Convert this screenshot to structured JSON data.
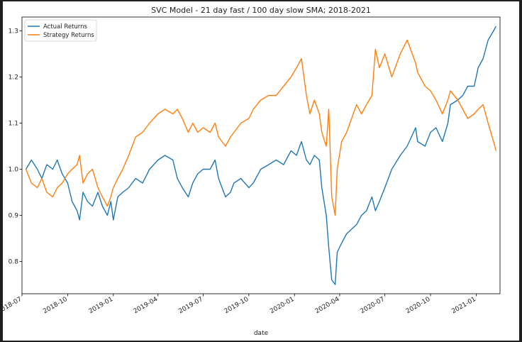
{
  "chart_data": {
    "type": "line",
    "title": "SVC Model - 21 day fast / 100 day slow SMA; 2018-2021",
    "xlabel": "date",
    "ylabel": "",
    "xlim": [
      "2018-07-01",
      "2021-02-18"
    ],
    "ylim": [
      0.73,
      1.33
    ],
    "grid": false,
    "legend_position": "top-left",
    "x_ticks": [
      "2018-07",
      "2018-10",
      "2019-01",
      "2019-04",
      "2019-07",
      "2019-10",
      "2020-01",
      "2020-04",
      "2020-07",
      "2020-10",
      "2021-01"
    ],
    "y_ticks": [
      "0.8",
      "0.9",
      "1.0",
      "1.1",
      "1.2",
      "1.3"
    ],
    "series": [
      {
        "name": "Actual Returns",
        "color": "#1f77b4",
        "points": [
          [
            "2018-07-09",
            1.0
          ],
          [
            "2018-07-20",
            1.02
          ],
          [
            "2018-08-01",
            1.0
          ],
          [
            "2018-08-10",
            0.98
          ],
          [
            "2018-08-20",
            1.01
          ],
          [
            "2018-09-01",
            1.0
          ],
          [
            "2018-09-10",
            1.02
          ],
          [
            "2018-09-20",
            0.99
          ],
          [
            "2018-10-01",
            0.97
          ],
          [
            "2018-10-10",
            0.93
          ],
          [
            "2018-10-20",
            0.91
          ],
          [
            "2018-10-25",
            0.89
          ],
          [
            "2018-11-01",
            0.95
          ],
          [
            "2018-11-10",
            0.93
          ],
          [
            "2018-11-20",
            0.92
          ],
          [
            "2018-12-01",
            0.95
          ],
          [
            "2018-12-10",
            0.92
          ],
          [
            "2018-12-20",
            0.9
          ],
          [
            "2018-12-27",
            0.93
          ],
          [
            "2019-01-01",
            0.89
          ],
          [
            "2019-01-10",
            0.94
          ],
          [
            "2019-01-20",
            0.95
          ],
          [
            "2019-02-01",
            0.96
          ],
          [
            "2019-02-15",
            0.98
          ],
          [
            "2019-03-01",
            0.97
          ],
          [
            "2019-03-15",
            1.0
          ],
          [
            "2019-04-01",
            1.02
          ],
          [
            "2019-04-15",
            1.03
          ],
          [
            "2019-05-01",
            1.02
          ],
          [
            "2019-05-10",
            0.98
          ],
          [
            "2019-05-20",
            0.96
          ],
          [
            "2019-06-01",
            0.94
          ],
          [
            "2019-06-10",
            0.97
          ],
          [
            "2019-06-20",
            0.99
          ],
          [
            "2019-07-01",
            1.0
          ],
          [
            "2019-07-15",
            1.0
          ],
          [
            "2019-07-25",
            1.02
          ],
          [
            "2019-08-01",
            0.98
          ],
          [
            "2019-08-15",
            0.94
          ],
          [
            "2019-08-25",
            0.95
          ],
          [
            "2019-09-01",
            0.97
          ],
          [
            "2019-09-15",
            0.98
          ],
          [
            "2019-10-01",
            0.96
          ],
          [
            "2019-10-10",
            0.97
          ],
          [
            "2019-10-25",
            1.0
          ],
          [
            "2019-11-10",
            1.01
          ],
          [
            "2019-11-25",
            1.02
          ],
          [
            "2019-12-10",
            1.01
          ],
          [
            "2019-12-25",
            1.04
          ],
          [
            "2020-01-05",
            1.03
          ],
          [
            "2020-01-15",
            1.06
          ],
          [
            "2020-01-25",
            1.02
          ],
          [
            "2020-02-01",
            1.01
          ],
          [
            "2020-02-10",
            1.03
          ],
          [
            "2020-02-20",
            1.02
          ],
          [
            "2020-02-25",
            0.96
          ],
          [
            "2020-03-05",
            0.9
          ],
          [
            "2020-03-10",
            0.83
          ],
          [
            "2020-03-16",
            0.76
          ],
          [
            "2020-03-23",
            0.75
          ],
          [
            "2020-03-27",
            0.82
          ],
          [
            "2020-04-05",
            0.84
          ],
          [
            "2020-04-15",
            0.86
          ],
          [
            "2020-04-25",
            0.87
          ],
          [
            "2020-05-05",
            0.88
          ],
          [
            "2020-05-15",
            0.9
          ],
          [
            "2020-05-25",
            0.91
          ],
          [
            "2020-06-05",
            0.94
          ],
          [
            "2020-06-12",
            0.91
          ],
          [
            "2020-06-20",
            0.93
          ],
          [
            "2020-07-01",
            0.96
          ],
          [
            "2020-07-15",
            1.0
          ],
          [
            "2020-08-01",
            1.03
          ],
          [
            "2020-08-15",
            1.05
          ],
          [
            "2020-09-01",
            1.09
          ],
          [
            "2020-09-05",
            1.06
          ],
          [
            "2020-09-20",
            1.05
          ],
          [
            "2020-10-01",
            1.08
          ],
          [
            "2020-10-12",
            1.09
          ],
          [
            "2020-10-25",
            1.06
          ],
          [
            "2020-11-05",
            1.1
          ],
          [
            "2020-11-10",
            1.14
          ],
          [
            "2020-11-25",
            1.15
          ],
          [
            "2020-12-05",
            1.16
          ],
          [
            "2020-12-15",
            1.18
          ],
          [
            "2020-12-28",
            1.18
          ],
          [
            "2021-01-05",
            1.22
          ],
          [
            "2021-01-15",
            1.24
          ],
          [
            "2021-01-25",
            1.28
          ],
          [
            "2021-02-05",
            1.3
          ],
          [
            "2021-02-10",
            1.31
          ]
        ]
      },
      {
        "name": "Strategy Returns",
        "color": "#ff7f0e",
        "points": [
          [
            "2018-07-09",
            1.0
          ],
          [
            "2018-07-20",
            0.97
          ],
          [
            "2018-08-01",
            0.96
          ],
          [
            "2018-08-10",
            0.98
          ],
          [
            "2018-08-20",
            0.95
          ],
          [
            "2018-09-01",
            0.94
          ],
          [
            "2018-09-10",
            0.96
          ],
          [
            "2018-09-20",
            0.97
          ],
          [
            "2018-10-01",
            0.99
          ],
          [
            "2018-10-10",
            1.0
          ],
          [
            "2018-10-20",
            1.01
          ],
          [
            "2018-10-25",
            1.03
          ],
          [
            "2018-11-01",
            0.97
          ],
          [
            "2018-11-10",
            0.99
          ],
          [
            "2018-11-20",
            1.0
          ],
          [
            "2018-12-01",
            0.96
          ],
          [
            "2018-12-10",
            0.94
          ],
          [
            "2018-12-20",
            0.92
          ],
          [
            "2018-12-27",
            0.94
          ],
          [
            "2019-01-01",
            0.96
          ],
          [
            "2019-01-10",
            0.98
          ],
          [
            "2019-01-20",
            1.0
          ],
          [
            "2019-02-01",
            1.03
          ],
          [
            "2019-02-15",
            1.07
          ],
          [
            "2019-03-01",
            1.08
          ],
          [
            "2019-03-15",
            1.1
          ],
          [
            "2019-04-01",
            1.12
          ],
          [
            "2019-04-15",
            1.13
          ],
          [
            "2019-05-01",
            1.12
          ],
          [
            "2019-05-10",
            1.13
          ],
          [
            "2019-05-20",
            1.11
          ],
          [
            "2019-06-01",
            1.08
          ],
          [
            "2019-06-10",
            1.1
          ],
          [
            "2019-06-20",
            1.08
          ],
          [
            "2019-07-01",
            1.09
          ],
          [
            "2019-07-15",
            1.08
          ],
          [
            "2019-07-25",
            1.1
          ],
          [
            "2019-08-01",
            1.07
          ],
          [
            "2019-08-15",
            1.05
          ],
          [
            "2019-08-25",
            1.07
          ],
          [
            "2019-09-01",
            1.08
          ],
          [
            "2019-09-15",
            1.1
          ],
          [
            "2019-10-01",
            1.11
          ],
          [
            "2019-10-10",
            1.13
          ],
          [
            "2019-10-25",
            1.15
          ],
          [
            "2019-11-10",
            1.16
          ],
          [
            "2019-11-25",
            1.16
          ],
          [
            "2019-12-10",
            1.18
          ],
          [
            "2019-12-25",
            1.2
          ],
          [
            "2020-01-05",
            1.22
          ],
          [
            "2020-01-15",
            1.24
          ],
          [
            "2020-01-25",
            1.16
          ],
          [
            "2020-02-01",
            1.12
          ],
          [
            "2020-02-10",
            1.15
          ],
          [
            "2020-02-20",
            1.12
          ],
          [
            "2020-02-25",
            1.08
          ],
          [
            "2020-03-05",
            1.05
          ],
          [
            "2020-03-10",
            1.13
          ],
          [
            "2020-03-16",
            0.94
          ],
          [
            "2020-03-23",
            0.9
          ],
          [
            "2020-03-27",
            1.0
          ],
          [
            "2020-04-05",
            1.06
          ],
          [
            "2020-04-15",
            1.08
          ],
          [
            "2020-04-25",
            1.11
          ],
          [
            "2020-05-05",
            1.14
          ],
          [
            "2020-05-15",
            1.12
          ],
          [
            "2020-05-25",
            1.14
          ],
          [
            "2020-06-05",
            1.16
          ],
          [
            "2020-06-12",
            1.26
          ],
          [
            "2020-06-20",
            1.22
          ],
          [
            "2020-07-01",
            1.25
          ],
          [
            "2020-07-15",
            1.2
          ],
          [
            "2020-08-01",
            1.25
          ],
          [
            "2020-08-15",
            1.28
          ],
          [
            "2020-09-01",
            1.23
          ],
          [
            "2020-09-05",
            1.21
          ],
          [
            "2020-09-20",
            1.18
          ],
          [
            "2020-10-01",
            1.17
          ],
          [
            "2020-10-12",
            1.15
          ],
          [
            "2020-10-25",
            1.12
          ],
          [
            "2020-11-05",
            1.15
          ],
          [
            "2020-11-10",
            1.17
          ],
          [
            "2020-11-25",
            1.15
          ],
          [
            "2020-12-05",
            1.13
          ],
          [
            "2020-12-15",
            1.11
          ],
          [
            "2020-12-28",
            1.12
          ],
          [
            "2021-01-05",
            1.13
          ],
          [
            "2021-01-15",
            1.14
          ],
          [
            "2021-01-25",
            1.1
          ],
          [
            "2021-02-05",
            1.06
          ],
          [
            "2021-02-10",
            1.04
          ]
        ]
      }
    ]
  }
}
